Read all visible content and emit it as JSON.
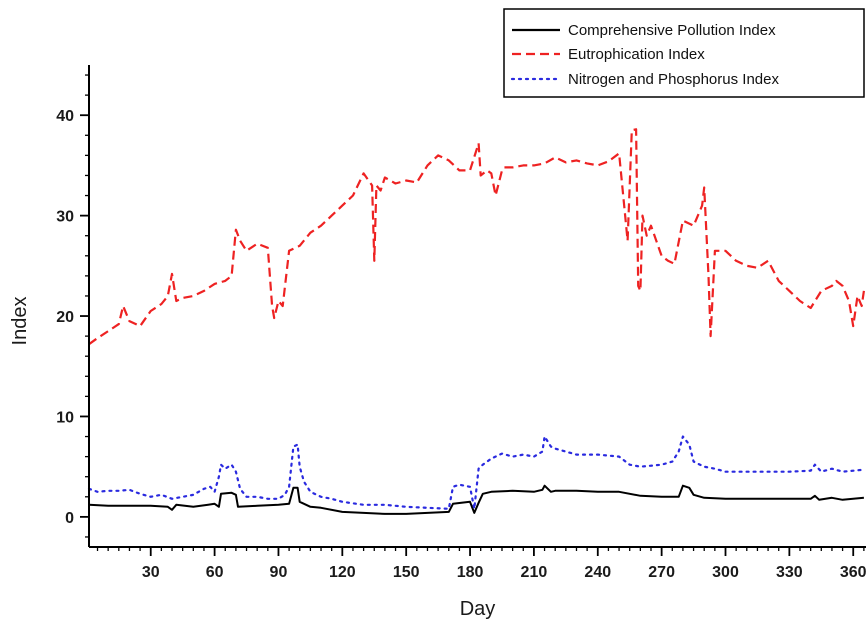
{
  "chart_data": {
    "type": "line",
    "xlabel": "Day",
    "ylabel": "Index",
    "xlim": [
      1,
      366
    ],
    "ylim": [
      -3,
      45
    ],
    "x_ticks": [
      30,
      60,
      90,
      120,
      150,
      180,
      210,
      240,
      270,
      300,
      330,
      360
    ],
    "x_tick_labels": [
      "30",
      "60",
      "90",
      "120",
      "150",
      "180",
      "210",
      "240",
      "270",
      "300",
      "330",
      "360"
    ],
    "y_ticks": [
      0,
      10,
      20,
      30,
      40
    ],
    "y_tick_labels": [
      "0",
      "10",
      "20",
      "30",
      "40"
    ],
    "grid": false,
    "legend": "top-right",
    "series": [
      {
        "name": "Comprehensive Pollution Index",
        "color": "#000000",
        "style": "solid",
        "x": [
          1,
          10,
          20,
          30,
          38,
          40,
          42,
          50,
          57,
          60,
          62,
          63,
          68,
          70,
          71,
          80,
          90,
          95,
          97,
          99,
          100,
          105,
          110,
          120,
          130,
          140,
          150,
          160,
          170,
          172,
          180,
          182,
          184,
          186,
          190,
          200,
          210,
          214,
          215,
          218,
          220,
          230,
          240,
          250,
          260,
          270,
          278,
          280,
          283,
          285,
          290,
          300,
          310,
          320,
          330,
          340,
          342,
          344,
          350,
          355,
          360,
          365
        ],
        "y": [
          1.2,
          1.1,
          1.1,
          1.1,
          1.0,
          0.7,
          1.2,
          1.0,
          1.2,
          1.3,
          1.0,
          2.3,
          2.4,
          2.2,
          1.0,
          1.1,
          1.2,
          1.3,
          2.9,
          2.9,
          1.5,
          1.0,
          0.9,
          0.5,
          0.4,
          0.3,
          0.3,
          0.4,
          0.5,
          1.3,
          1.5,
          0.4,
          1.4,
          2.3,
          2.5,
          2.6,
          2.5,
          2.7,
          3.1,
          2.5,
          2.6,
          2.6,
          2.5,
          2.5,
          2.1,
          2.0,
          2.0,
          3.1,
          2.9,
          2.2,
          1.9,
          1.8,
          1.8,
          1.8,
          1.8,
          1.8,
          2.1,
          1.7,
          1.9,
          1.7,
          1.8,
          1.9
        ]
      },
      {
        "name": "Eutrophication Index",
        "color": "#ee2222",
        "style": "dashed",
        "x": [
          1,
          5,
          10,
          15,
          17,
          20,
          25,
          30,
          35,
          38,
          40,
          42,
          45,
          50,
          55,
          60,
          65,
          68,
          70,
          72,
          75,
          80,
          85,
          87,
          88,
          90,
          92,
          95,
          100,
          105,
          110,
          115,
          120,
          125,
          130,
          134,
          135,
          136,
          138,
          140,
          145,
          150,
          155,
          160,
          165,
          170,
          175,
          180,
          184,
          185,
          188,
          190,
          192,
          195,
          196,
          200,
          205,
          210,
          215,
          220,
          225,
          230,
          235,
          240,
          245,
          250,
          254,
          256,
          258,
          259,
          260,
          261,
          263,
          265,
          270,
          273,
          276,
          280,
          285,
          289,
          290,
          292,
          293,
          295,
          300,
          305,
          310,
          315,
          320,
          325,
          330,
          335,
          340,
          345,
          350,
          352,
          355,
          358,
          360,
          362,
          364,
          365
        ],
        "y": [
          17.2,
          17.8,
          18.5,
          19.2,
          21.0,
          19.5,
          19.0,
          20.5,
          21.2,
          22.0,
          24.2,
          21.5,
          21.8,
          22.0,
          22.5,
          23.2,
          23.5,
          24.0,
          28.6,
          27.5,
          26.5,
          27.2,
          26.8,
          21.0,
          19.8,
          21.5,
          21.0,
          26.5,
          27.0,
          28.3,
          29.0,
          30.0,
          31.0,
          32.0,
          34.2,
          33.0,
          25.5,
          33.0,
          32.5,
          33.8,
          33.2,
          33.5,
          33.3,
          35.0,
          36.0,
          35.5,
          34.5,
          34.5,
          37.2,
          34.0,
          34.5,
          34.2,
          32.0,
          34.5,
          34.8,
          34.8,
          35.0,
          35.0,
          35.2,
          35.8,
          35.3,
          35.5,
          35.2,
          35.0,
          35.4,
          36.2,
          27.5,
          38.5,
          38.6,
          23.0,
          22.5,
          30.0,
          28.0,
          29.0,
          26.0,
          25.5,
          25.2,
          29.5,
          29.0,
          31.0,
          32.8,
          24.0,
          18.0,
          26.5,
          26.5,
          25.5,
          25.0,
          24.8,
          25.5,
          23.5,
          22.5,
          21.5,
          20.8,
          22.5,
          23.0,
          23.5,
          23.0,
          21.5,
          19.0,
          22.0,
          21.0,
          22.5
        ]
      },
      {
        "name": "Nitrogen and Phosphorus Index",
        "color": "#2a2adf",
        "style": "dotted",
        "x": [
          1,
          5,
          10,
          15,
          20,
          25,
          30,
          35,
          40,
          45,
          50,
          55,
          58,
          60,
          62,
          63,
          65,
          68,
          70,
          72,
          75,
          80,
          85,
          90,
          93,
          95,
          97,
          99,
          100,
          102,
          105,
          110,
          115,
          120,
          130,
          140,
          150,
          160,
          170,
          172,
          175,
          180,
          182,
          184,
          186,
          188,
          190,
          195,
          200,
          205,
          210,
          214,
          215,
          218,
          220,
          225,
          230,
          240,
          250,
          255,
          260,
          270,
          275,
          278,
          280,
          283,
          285,
          290,
          295,
          300,
          310,
          320,
          330,
          340,
          342,
          345,
          350,
          355,
          360,
          365
        ],
        "y": [
          2.8,
          2.5,
          2.6,
          2.6,
          2.7,
          2.3,
          2.0,
          2.2,
          1.8,
          2.0,
          2.2,
          2.8,
          3.0,
          2.5,
          4.0,
          5.2,
          4.8,
          5.2,
          4.5,
          2.8,
          2.0,
          2.0,
          1.8,
          1.8,
          2.2,
          3.0,
          7.0,
          7.2,
          5.0,
          3.5,
          2.5,
          2.0,
          1.8,
          1.5,
          1.2,
          1.2,
          1.0,
          0.9,
          0.8,
          3.0,
          3.2,
          3.0,
          0.8,
          4.8,
          5.2,
          5.5,
          5.8,
          6.3,
          6.0,
          6.2,
          6.0,
          6.5,
          8.0,
          7.0,
          6.8,
          6.5,
          6.2,
          6.2,
          6.0,
          5.2,
          5.0,
          5.2,
          5.5,
          6.5,
          8.0,
          7.2,
          5.5,
          5.0,
          4.8,
          4.5,
          4.5,
          4.5,
          4.5,
          4.6,
          5.2,
          4.5,
          4.8,
          4.5,
          4.6,
          4.7
        ]
      }
    ]
  }
}
